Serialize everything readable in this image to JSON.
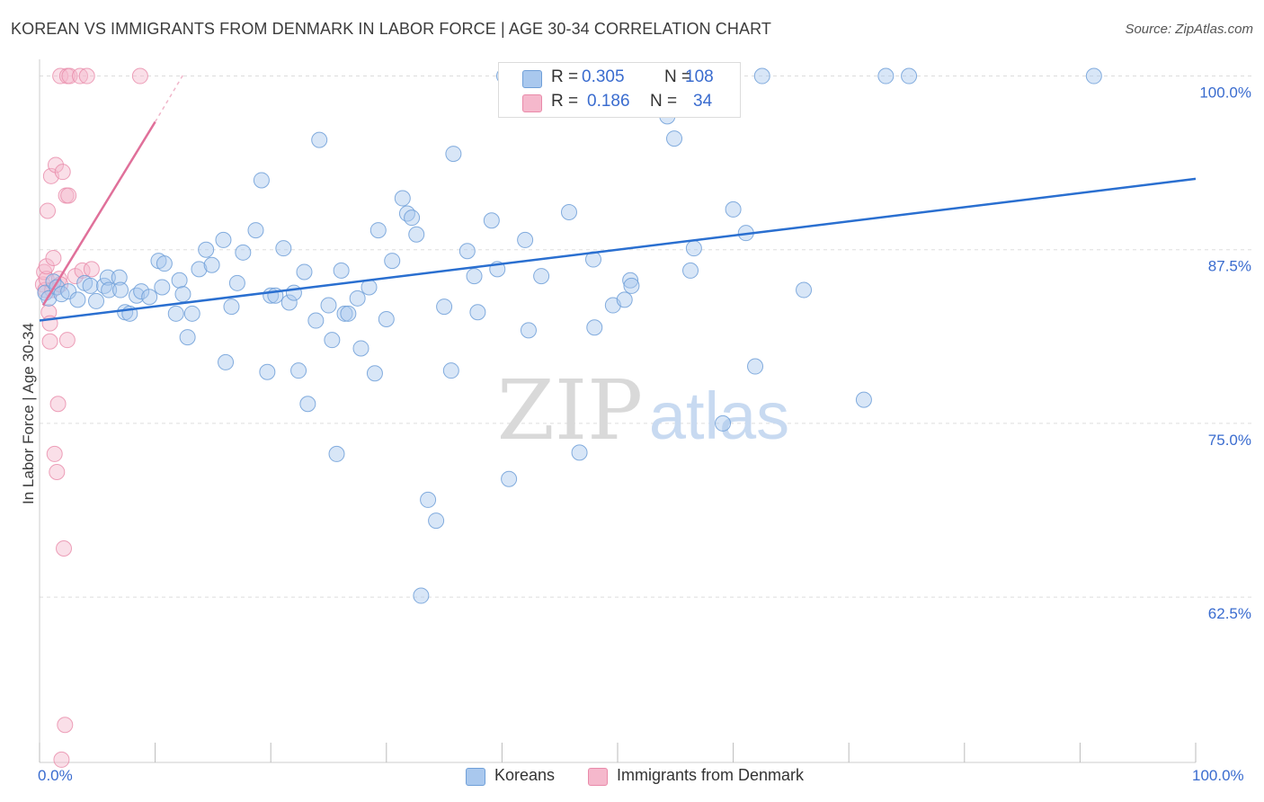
{
  "title": "KOREAN VS IMMIGRANTS FROM DENMARK IN LABOR FORCE | AGE 30-34 CORRELATION CHART",
  "source": "Source: ZipAtlas.com",
  "watermark": {
    "zip": "ZIP",
    "atlas": "atlas"
  },
  "colors": {
    "koreans_fill": "#a9c8ee",
    "koreans_stroke": "#6f9fd8",
    "koreans_line": "#2a6fd0",
    "denmark_fill": "#f5b8cc",
    "denmark_stroke": "#e98aa9",
    "denmark_line": "#e0709a",
    "axis_label": "#3a6ccf",
    "grid": "#dddddd"
  },
  "legend": {
    "rows": [
      {
        "r_label": "R =",
        "r_value": "0.305",
        "n_label": "N =",
        "n_value": "108"
      },
      {
        "r_label": "R =",
        "r_value": "0.186",
        "n_label": "N =",
        "n_value": "34"
      }
    ]
  },
  "bottom_legend": [
    "Koreans",
    "Immigrants from Denmark"
  ],
  "chart_data": {
    "type": "scatter",
    "title": "KOREAN VS IMMIGRANTS FROM DENMARK IN LABOR FORCE | AGE 30-34 CORRELATION CHART",
    "xlabel": "",
    "ylabel": "In Labor Force | Age 30-34",
    "xlim": [
      0,
      100
    ],
    "ylim": [
      50.6,
      101.2
    ],
    "x_tick_labels": [
      "0.0%",
      "100.0%"
    ],
    "y_ticks": [
      100.0,
      87.5,
      75.0,
      62.5
    ],
    "y_tick_labels": [
      "100.0%",
      "87.5%",
      "75.0%",
      "62.5%"
    ],
    "grid": "horizontal dashed",
    "series": [
      {
        "name": "Koreans",
        "r": 0.305,
        "n": 108,
        "trend": {
          "x": [
            0,
            100
          ],
          "y": [
            82.4,
            92.6
          ]
        },
        "points": [
          [
            0.5,
            84.4
          ],
          [
            0.8,
            84.0
          ],
          [
            1.2,
            85.2
          ],
          [
            1.5,
            84.8
          ],
          [
            1.9,
            84.3
          ],
          [
            2.5,
            84.5
          ],
          [
            3.3,
            83.9
          ],
          [
            3.9,
            85.1
          ],
          [
            4.4,
            84.9
          ],
          [
            4.9,
            83.8
          ],
          [
            5.6,
            84.9
          ],
          [
            5.9,
            85.5
          ],
          [
            6.0,
            84.6
          ],
          [
            6.9,
            85.5
          ],
          [
            7.0,
            84.6
          ],
          [
            7.4,
            83.0
          ],
          [
            7.8,
            82.9
          ],
          [
            8.4,
            84.2
          ],
          [
            8.8,
            84.5
          ],
          [
            9.5,
            84.1
          ],
          [
            10.3,
            86.7
          ],
          [
            10.6,
            84.8
          ],
          [
            10.8,
            86.5
          ],
          [
            11.8,
            82.9
          ],
          [
            12.1,
            85.3
          ],
          [
            12.4,
            84.3
          ],
          [
            12.8,
            81.2
          ],
          [
            13.2,
            82.9
          ],
          [
            13.8,
            86.1
          ],
          [
            14.4,
            87.5
          ],
          [
            14.9,
            86.4
          ],
          [
            15.9,
            88.2
          ],
          [
            16.1,
            79.4
          ],
          [
            16.6,
            83.4
          ],
          [
            17.1,
            85.1
          ],
          [
            17.6,
            87.3
          ],
          [
            18.7,
            88.9
          ],
          [
            19.2,
            92.5
          ],
          [
            19.7,
            78.7
          ],
          [
            20.0,
            84.2
          ],
          [
            20.4,
            84.2
          ],
          [
            21.1,
            87.6
          ],
          [
            21.6,
            83.7
          ],
          [
            22.0,
            84.4
          ],
          [
            22.4,
            78.8
          ],
          [
            22.9,
            85.9
          ],
          [
            23.2,
            76.4
          ],
          [
            23.9,
            82.4
          ],
          [
            24.2,
            95.4
          ],
          [
            25.0,
            83.5
          ],
          [
            25.3,
            81.0
          ],
          [
            25.7,
            72.8
          ],
          [
            26.1,
            86.0
          ],
          [
            26.4,
            82.9
          ],
          [
            26.7,
            82.9
          ],
          [
            27.5,
            84.0
          ],
          [
            27.8,
            80.4
          ],
          [
            28.5,
            84.8
          ],
          [
            29.0,
            78.6
          ],
          [
            29.3,
            88.9
          ],
          [
            30.0,
            82.5
          ],
          [
            30.5,
            86.7
          ],
          [
            31.4,
            91.2
          ],
          [
            31.8,
            90.1
          ],
          [
            32.2,
            89.8
          ],
          [
            32.6,
            88.6
          ],
          [
            33.6,
            69.5
          ],
          [
            34.3,
            68.0
          ],
          [
            35.0,
            83.4
          ],
          [
            35.6,
            78.8
          ],
          [
            35.8,
            94.4
          ],
          [
            37.0,
            87.4
          ],
          [
            37.6,
            85.6
          ],
          [
            37.9,
            83.0
          ],
          [
            39.1,
            89.6
          ],
          [
            39.6,
            86.1
          ],
          [
            40.6,
            71.0
          ],
          [
            42.0,
            88.2
          ],
          [
            42.3,
            81.7
          ],
          [
            43.4,
            85.6
          ],
          [
            45.8,
            90.2
          ],
          [
            46.7,
            72.9
          ],
          [
            47.9,
            86.8
          ],
          [
            48.0,
            81.9
          ],
          [
            49.6,
            83.5
          ],
          [
            50.6,
            83.9
          ],
          [
            51.1,
            85.3
          ],
          [
            51.2,
            84.9
          ],
          [
            52.5,
            98.0
          ],
          [
            53.6,
            98.0
          ],
          [
            53.8,
            100.0
          ],
          [
            54.3,
            97.1
          ],
          [
            54.9,
            95.5
          ],
          [
            56.0,
            100.0
          ],
          [
            56.3,
            86.0
          ],
          [
            56.6,
            87.6
          ],
          [
            59.1,
            75.0
          ],
          [
            60.0,
            90.4
          ],
          [
            61.1,
            88.7
          ],
          [
            61.9,
            79.1
          ],
          [
            62.5,
            100.0
          ],
          [
            66.1,
            84.6
          ],
          [
            71.3,
            76.7
          ],
          [
            73.2,
            100.0
          ],
          [
            75.2,
            100.0
          ],
          [
            91.2,
            100.0
          ],
          [
            40.2,
            100.0
          ],
          [
            33.0,
            62.6
          ]
        ]
      },
      {
        "name": "Immigrants from Denmark",
        "r": 0.186,
        "n": 34,
        "trend": {
          "x": [
            0.3,
            10.0
          ],
          "y": [
            83.5,
            96.7
          ]
        },
        "trend_dashed": {
          "x": [
            10.0,
            12.5
          ],
          "y": [
            96.7,
            100.2
          ]
        },
        "points": [
          [
            0.3,
            85.0
          ],
          [
            0.4,
            85.9
          ],
          [
            0.5,
            84.6
          ],
          [
            0.6,
            85.4
          ],
          [
            0.6,
            86.3
          ],
          [
            0.7,
            90.3
          ],
          [
            0.8,
            83.0
          ],
          [
            0.9,
            82.2
          ],
          [
            0.9,
            80.9
          ],
          [
            1.0,
            92.8
          ],
          [
            1.1,
            84.6
          ],
          [
            1.2,
            86.9
          ],
          [
            1.3,
            72.8
          ],
          [
            1.4,
            93.6
          ],
          [
            1.5,
            71.5
          ],
          [
            1.6,
            76.4
          ],
          [
            1.7,
            85.4
          ],
          [
            1.8,
            85.0
          ],
          [
            1.9,
            50.8
          ],
          [
            2.0,
            93.1
          ],
          [
            2.1,
            66.0
          ],
          [
            2.2,
            53.3
          ],
          [
            2.3,
            91.4
          ],
          [
            2.4,
            81.0
          ],
          [
            2.5,
            91.4
          ],
          [
            3.1,
            85.6
          ],
          [
            3.7,
            86.0
          ],
          [
            4.5,
            86.1
          ],
          [
            1.8,
            100.0
          ],
          [
            2.4,
            100.0
          ],
          [
            2.6,
            100.0
          ],
          [
            3.5,
            100.0
          ],
          [
            4.1,
            100.0
          ],
          [
            8.7,
            100.0
          ]
        ]
      }
    ]
  }
}
